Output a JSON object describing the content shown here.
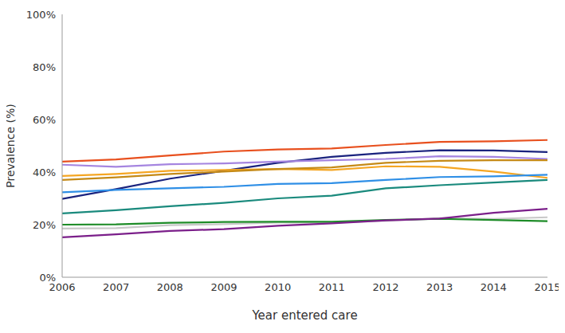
{
  "chart_data": {
    "type": "line",
    "x_label": "Year entered care",
    "y_label": "Prevalence (%)",
    "x": [
      2006,
      2007,
      2008,
      2009,
      2010,
      2011,
      2012,
      2013,
      2014,
      2015
    ],
    "xlim": [
      2006,
      2015
    ],
    "xticks": [
      2006,
      2007,
      2008,
      2009,
      2010,
      2011,
      2012,
      2013,
      2014,
      2015
    ],
    "ylim": [
      0,
      100
    ],
    "yticks": [
      {
        "value": 0,
        "label": "0%"
      },
      {
        "value": 20,
        "label": "20%"
      },
      {
        "value": 40,
        "label": "40%"
      },
      {
        "value": 60,
        "label": "60%"
      },
      {
        "value": 80,
        "label": "80%"
      },
      {
        "value": 100,
        "label": "100%"
      }
    ],
    "grid": false,
    "series": [
      {
        "color": "#e8501e",
        "values": [
          44,
          44.8,
          46.3,
          47.8,
          48.6,
          49,
          50.3,
          51.5,
          51.7,
          52.2
        ]
      },
      {
        "color": "#1a237e",
        "values": [
          29.8,
          33.5,
          37.5,
          40.5,
          43.5,
          45.8,
          47.3,
          48.3,
          48.2,
          47.6
        ]
      },
      {
        "color": "#a585e0",
        "values": [
          42.8,
          42,
          43,
          43.3,
          44,
          44.5,
          45,
          46,
          45.8,
          45
        ]
      },
      {
        "color": "#f5a623",
        "values": [
          38.5,
          39.3,
          40.5,
          40.8,
          41.2,
          40.8,
          42.2,
          42,
          40.2,
          37.8
        ]
      },
      {
        "color": "#c58a17",
        "values": [
          37,
          38,
          39.3,
          40.2,
          41.2,
          41.8,
          43.5,
          44.3,
          44.5,
          44.5
        ]
      },
      {
        "color": "#2f8fe6",
        "values": [
          32.3,
          33.2,
          33.8,
          34.4,
          35.5,
          35.8,
          37,
          38.1,
          38.4,
          39
        ]
      },
      {
        "color": "#1a8a7d",
        "values": [
          24.3,
          25.5,
          27,
          28.3,
          30,
          31,
          33.8,
          35,
          36,
          37
        ]
      },
      {
        "color": "#c8c8c8",
        "values": [
          18.5,
          18.7,
          19.8,
          20.2,
          20.8,
          20.8,
          21.5,
          22.5,
          22.2,
          22.8
        ]
      },
      {
        "color": "#1e8c28",
        "values": [
          20,
          20.1,
          20.7,
          21,
          21.1,
          21.1,
          21.8,
          22.2,
          21.8,
          21.3
        ]
      },
      {
        "color": "#7b1f8a",
        "values": [
          15.2,
          16.3,
          17.6,
          18.3,
          19.6,
          20.5,
          21.6,
          22.3,
          24.5,
          26
        ]
      }
    ]
  }
}
